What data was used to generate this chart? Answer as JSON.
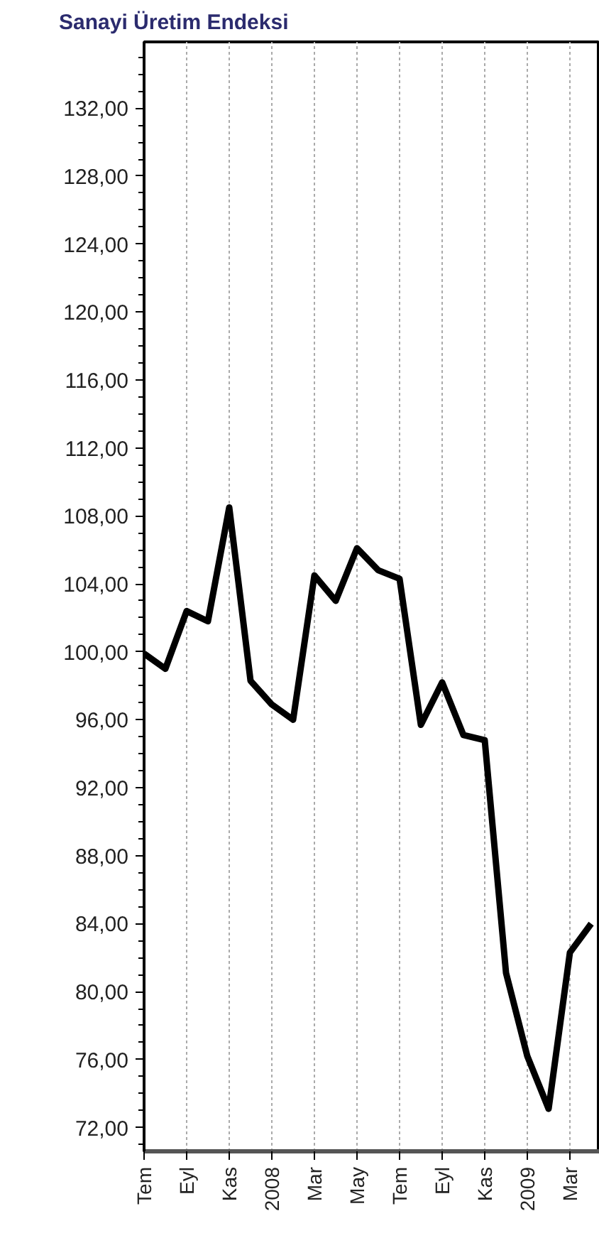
{
  "chart_data": {
    "type": "line",
    "title": "Sanayi Üretim Endeksi",
    "categories": [
      "Tem",
      null,
      "Eyl",
      null,
      "Kas",
      null,
      "2008",
      null,
      "Mar",
      null,
      "May",
      null,
      "Tem",
      null,
      "Eyl",
      null,
      "Kas",
      null,
      "2009",
      null,
      "Mar",
      null
    ],
    "series": [
      {
        "color": "#000000",
        "values": [
          99.9,
          99.0,
          102.4,
          101.8,
          108.5,
          98.3,
          96.9,
          96.0,
          104.5,
          103.0,
          106.1,
          104.8,
          104.3,
          95.7,
          98.2,
          95.1,
          94.8,
          81.1,
          76.2,
          73.1,
          82.3,
          84.0
        ]
      }
    ],
    "ylim": [
      70.6,
      135.9
    ],
    "yticks": [
      {
        "value": 72,
        "label": "72,00"
      },
      {
        "value": 76,
        "label": "76,00"
      },
      {
        "value": 80,
        "label": "80,00"
      },
      {
        "value": 84,
        "label": "84,00"
      },
      {
        "value": 88,
        "label": "88,00"
      },
      {
        "value": 92,
        "label": "92,00"
      },
      {
        "value": 96,
        "label": "96,00"
      },
      {
        "value": 100,
        "label": "100,00"
      },
      {
        "value": 104,
        "label": "104,00"
      },
      {
        "value": 108,
        "label": "108,00"
      },
      {
        "value": 112,
        "label": "112,00"
      },
      {
        "value": 116,
        "label": "116,00"
      },
      {
        "value": 120,
        "label": "120,00"
      },
      {
        "value": 124,
        "label": "124,00"
      },
      {
        "value": 128,
        "label": "128,00"
      },
      {
        "value": 132,
        "label": "132,00"
      }
    ],
    "grid": "x",
    "marker": "none",
    "line_style": "solid"
  }
}
